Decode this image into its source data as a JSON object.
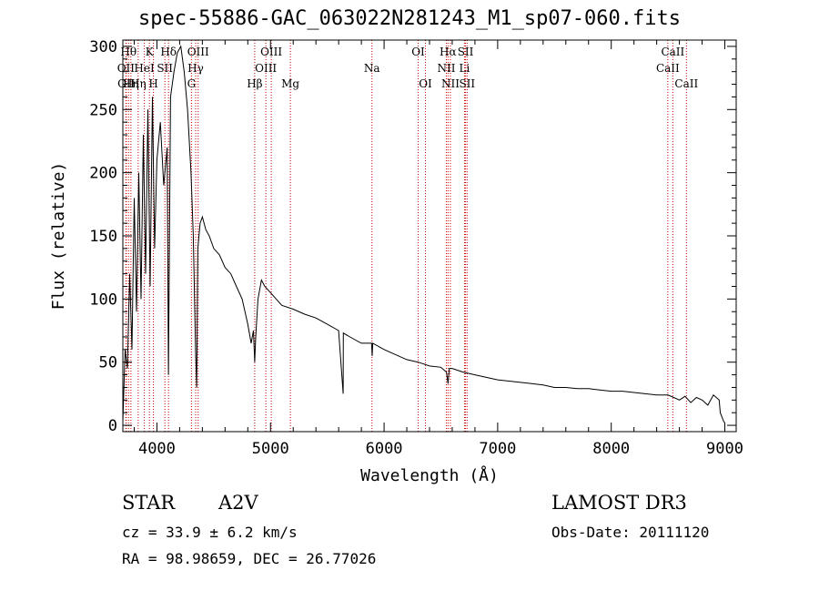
{
  "chart_data": {
    "type": "line",
    "title": "spec-55886-GAC_063022N281243_M1_sp07-060.fits",
    "xlabel": "Wavelength (Å)",
    "ylabel": "Flux (relative)",
    "xlim": [
      3700,
      9100
    ],
    "ylim": [
      -5,
      305
    ],
    "xticks": [
      4000,
      5000,
      6000,
      7000,
      8000,
      9000
    ],
    "yticks": [
      0,
      50,
      100,
      150,
      200,
      250,
      300
    ],
    "series": [
      {
        "name": "spectrum",
        "x": [
          3700,
          3720,
          3740,
          3760,
          3780,
          3800,
          3820,
          3840,
          3860,
          3880,
          3900,
          3920,
          3940,
          3960,
          3980,
          4000,
          4030,
          4060,
          4090,
          4101,
          4120,
          4150,
          4180,
          4210,
          4240,
          4270,
          4300,
          4320,
          4340,
          4350,
          4360,
          4380,
          4400,
          4430,
          4460,
          4500,
          4550,
          4600,
          4650,
          4700,
          4750,
          4800,
          4830,
          4850,
          4861,
          4870,
          4890,
          4920,
          4950,
          5000,
          5100,
          5200,
          5300,
          5400,
          5500,
          5600,
          5640,
          5641,
          5700,
          5800,
          5890,
          5895,
          5900,
          6000,
          6100,
          6200,
          6300,
          6400,
          6500,
          6550,
          6563,
          6575,
          6600,
          6700,
          6800,
          6900,
          7000,
          7100,
          7200,
          7300,
          7400,
          7500,
          7600,
          7700,
          7800,
          7900,
          8000,
          8100,
          8200,
          8300,
          8400,
          8500,
          8550,
          8600,
          8650,
          8700,
          8750,
          8800,
          8850,
          8900,
          8950,
          8960,
          8990,
          9000
        ],
        "values": [
          3,
          60,
          45,
          120,
          60,
          180,
          90,
          200,
          100,
          230,
          120,
          250,
          110,
          260,
          140,
          210,
          240,
          190,
          220,
          40,
          260,
          280,
          295,
          300,
          280,
          250,
          200,
          150,
          60,
          30,
          140,
          160,
          165,
          155,
          150,
          140,
          135,
          125,
          120,
          110,
          100,
          80,
          65,
          75,
          50,
          70,
          100,
          115,
          110,
          105,
          95,
          92,
          88,
          85,
          80,
          75,
          25,
          73,
          70,
          65,
          65,
          55,
          65,
          60,
          56,
          52,
          50,
          47,
          46,
          42,
          33,
          45,
          45,
          42,
          40,
          38,
          36,
          35,
          34,
          33,
          32,
          30,
          30,
          29,
          29,
          28,
          27,
          27,
          26,
          25,
          24,
          24,
          22,
          20,
          23,
          18,
          22,
          20,
          16,
          24,
          20,
          10,
          3,
          2
        ]
      }
    ],
    "lines": [
      {
        "wl": 3727,
        "label": "OII",
        "row": 2
      },
      {
        "wl": 3730,
        "label": "OII",
        "row": 3
      },
      {
        "wl": 3750,
        "label": "Hθ",
        "row": 1
      },
      {
        "wl": 3771,
        "label": "Hη",
        "row": 3
      },
      {
        "wl": 3835,
        "label": "Hη",
        "row": 3
      },
      {
        "wl": 3889,
        "label": "HeI",
        "row": 2
      },
      {
        "wl": 3934,
        "label": "K",
        "row": 1
      },
      {
        "wl": 3969,
        "label": "H",
        "row": 3
      },
      {
        "wl": 4070,
        "label": "SII",
        "row": 2
      },
      {
        "wl": 4102,
        "label": "Hδ",
        "row": 1
      },
      {
        "wl": 4304,
        "label": "G",
        "row": 3
      },
      {
        "wl": 4341,
        "label": "Hγ",
        "row": 2
      },
      {
        "wl": 4363,
        "label": "OIII",
        "row": 1
      },
      {
        "wl": 4861,
        "label": "Hβ",
        "row": 3
      },
      {
        "wl": 4959,
        "label": "OIII",
        "row": 2
      },
      {
        "wl": 5007,
        "label": "OIII",
        "row": 1
      },
      {
        "wl": 5175,
        "label": "Mg",
        "row": 3
      },
      {
        "wl": 5893,
        "label": "Na",
        "row": 2
      },
      {
        "wl": 6300,
        "label": "OI",
        "row": 1
      },
      {
        "wl": 6364,
        "label": "OI",
        "row": 3
      },
      {
        "wl": 6548,
        "label": "NII",
        "row": 2
      },
      {
        "wl": 6563,
        "label": "Hα",
        "row": 1
      },
      {
        "wl": 6584,
        "label": "NII",
        "row": 3
      },
      {
        "wl": 6708,
        "label": "Li",
        "row": 2
      },
      {
        "wl": 6717,
        "label": "SII",
        "row": 1
      },
      {
        "wl": 6731,
        "label": "SII",
        "row": 3
      },
      {
        "wl": 8498,
        "label": "CaII",
        "row": 2
      },
      {
        "wl": 8542,
        "label": "CaII",
        "row": 1
      },
      {
        "wl": 8662,
        "label": "CaII",
        "row": 3
      }
    ]
  },
  "info": {
    "class": "STAR",
    "subclass": "A2V",
    "survey": "LAMOST DR3",
    "cz": "cz = 33.9 ± 6.2 km/s",
    "obsdate": "Obs-Date: 20111120",
    "radec": "RA =  98.98659, DEC =  26.77026"
  },
  "colors": {
    "line_marker": "#cc0000",
    "spectrum": "#000000"
  }
}
